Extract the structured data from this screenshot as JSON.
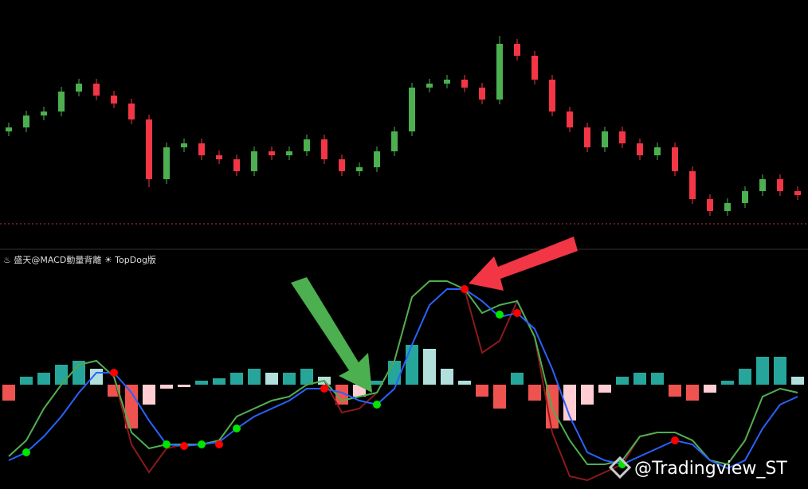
{
  "chart_data": [
    {
      "type": "candlestick",
      "open": [
        145,
        150,
        165,
        170,
        195,
        205,
        190,
        180,
        160,
        85,
        125,
        130,
        115,
        110,
        95,
        120,
        115,
        120,
        135,
        110,
        95,
        100,
        120,
        145,
        200,
        205,
        210,
        200,
        185,
        255,
        240,
        210,
        170,
        150,
        125,
        145,
        130,
        115,
        125,
        95,
        60,
        45,
        55,
        70,
        85,
        70
      ],
      "high": [
        156,
        171,
        176,
        201,
        211,
        211,
        196,
        186,
        166,
        131,
        136,
        136,
        121,
        116,
        126,
        126,
        126,
        141,
        141,
        116,
        106,
        126,
        151,
        206,
        211,
        216,
        216,
        206,
        265,
        261,
        246,
        216,
        176,
        156,
        151,
        151,
        136,
        131,
        131,
        101,
        66,
        61,
        76,
        91,
        91,
        76
      ],
      "low": [
        139,
        144,
        159,
        164,
        189,
        184,
        174,
        154,
        75,
        79,
        119,
        109,
        104,
        89,
        89,
        109,
        109,
        114,
        104,
        89,
        89,
        94,
        114,
        139,
        194,
        199,
        194,
        179,
        179,
        234,
        204,
        164,
        144,
        119,
        119,
        124,
        109,
        109,
        89,
        54,
        39,
        39,
        49,
        64,
        64,
        59
      ],
      "close": [
        150,
        165,
        170,
        195,
        205,
        190,
        180,
        160,
        85,
        125,
        130,
        115,
        110,
        95,
        120,
        115,
        120,
        135,
        110,
        95,
        100,
        120,
        145,
        200,
        205,
        210,
        200,
        185,
        255,
        240,
        210,
        170,
        150,
        125,
        145,
        130,
        115,
        125,
        95,
        60,
        45,
        55,
        70,
        85,
        70,
        65
      ],
      "up_color": "#4caf50",
      "down_color": "#f23645",
      "ylim": [
        0,
        310
      ],
      "reference_line": 29,
      "reference_color": "#b23b3b"
    },
    {
      "type": "macd",
      "title": "♨ 盛天@MACD動量背離 ☀ TopDog版",
      "ylim": [
        -131,
        168
      ],
      "histogram": {
        "values": [
          -20,
          10,
          15,
          25,
          30,
          20,
          -15,
          -55,
          -25,
          -5,
          -3,
          5,
          8,
          15,
          20,
          15,
          15,
          20,
          10,
          -25,
          -15,
          5,
          30,
          50,
          45,
          20,
          5,
          -15,
          -30,
          15,
          -20,
          -55,
          -45,
          -25,
          -10,
          10,
          15,
          15,
          -15,
          -20,
          -10,
          5,
          20,
          35,
          35,
          10
        ],
        "colors": {
          "pos_up": "#26a69a",
          "pos_down": "#b2dfdb",
          "neg_down": "#ef5350",
          "neg_up": "#ffcdd2"
        }
      },
      "series": [
        {
          "color": "#8b1a1a",
          "values": [
            -90,
            -70,
            -30,
            0,
            25,
            30,
            10,
            -75,
            -110,
            -80,
            -75,
            -75,
            -70,
            -40,
            -30,
            -20,
            -15,
            0,
            5,
            -35,
            -30,
            -10,
            30,
            110,
            130,
            130,
            120,
            40,
            55,
            105,
            60,
            -60,
            -115,
            -120,
            -110,
            -100,
            -65,
            -60,
            -60,
            -70,
            -95,
            -100,
            -70,
            -15,
            -5,
            -10
          ]
        },
        {
          "color": "#4caf50",
          "values": [
            -90,
            -70,
            -30,
            0,
            25,
            30,
            10,
            -60,
            -80,
            -75,
            -75,
            -75,
            -70,
            -40,
            -30,
            -20,
            -15,
            0,
            5,
            -20,
            -15,
            -10,
            30,
            110,
            130,
            130,
            120,
            90,
            100,
            105,
            60,
            -30,
            -70,
            -100,
            -100,
            -95,
            -65,
            -60,
            -60,
            -70,
            -95,
            -100,
            -70,
            -15,
            -5,
            -10
          ]
        },
        {
          "color": "#2962ff",
          "values": [
            -95,
            -85,
            -65,
            -40,
            -10,
            15,
            15,
            -10,
            -45,
            -75,
            -77,
            -75,
            -72,
            -55,
            -40,
            -30,
            -20,
            -5,
            -5,
            -10,
            -20,
            -25,
            -5,
            50,
            100,
            120,
            120,
            105,
            85,
            90,
            70,
            20,
            -40,
            -85,
            -95,
            -100,
            -90,
            -80,
            -70,
            -75,
            -95,
            -105,
            -95,
            -55,
            -25,
            -15
          ]
        }
      ],
      "buy": {
        "color": "#00e600",
        "values": [
          null,
          -85,
          null,
          null,
          null,
          null,
          null,
          null,
          null,
          -75,
          null,
          -75,
          null,
          -55,
          null,
          null,
          null,
          null,
          null,
          null,
          null,
          -25,
          null,
          null,
          null,
          null,
          null,
          null,
          88,
          null,
          null,
          null,
          null,
          null,
          null,
          -100,
          null,
          null,
          null,
          null,
          null,
          null,
          null,
          null,
          null,
          null
        ]
      },
      "sell": {
        "color": "#ff0000",
        "values": [
          null,
          null,
          null,
          null,
          null,
          null,
          15,
          null,
          null,
          null,
          -77,
          null,
          -75,
          null,
          null,
          null,
          null,
          null,
          -5,
          null,
          null,
          null,
          null,
          null,
          null,
          null,
          120,
          null,
          null,
          90,
          null,
          null,
          null,
          null,
          null,
          null,
          null,
          null,
          -70,
          null,
          null,
          null,
          null,
          null,
          null,
          null
        ]
      }
    }
  ],
  "watermark": "@Tradingview_ST"
}
